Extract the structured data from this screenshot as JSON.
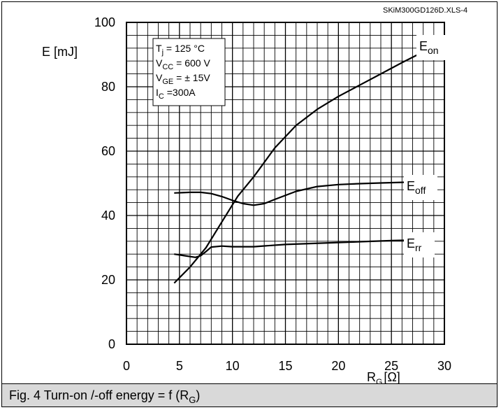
{
  "chart_data": {
    "type": "line",
    "source_label": "SKiM300GD126D.XLS-4",
    "ylabel": "E [mJ]",
    "xlabel_main": "R",
    "xlabel_sub": "G",
    "xlabel_unit": "[Ω]",
    "xlim": [
      0,
      30
    ],
    "ylim": [
      0,
      100
    ],
    "x_ticks": [
      "0",
      "5",
      "10",
      "15",
      "20",
      "25",
      "30"
    ],
    "y_ticks": [
      "0",
      "20",
      "40",
      "60",
      "80",
      "100"
    ],
    "grid": true,
    "conditions": [
      {
        "main": "T",
        "sub": "j",
        "rest": "  = 125 °C"
      },
      {
        "main": "V",
        "sub": "CC",
        "rest": " = 600 V"
      },
      {
        "main": "V",
        "sub": "GE",
        "rest": " = ± 15V"
      },
      {
        "main": "I",
        "sub": "C",
        "rest": " =300A"
      }
    ],
    "series": [
      {
        "name": "E",
        "name_sub": "on",
        "x": [
          4.5,
          6,
          7.5,
          9,
          10.5,
          12,
          14,
          16,
          18,
          20,
          22,
          24,
          26,
          27.5
        ],
        "y": [
          19,
          24,
          30,
          38,
          46,
          52,
          61,
          68,
          73,
          77,
          80.5,
          84,
          87.5,
          90
        ]
      },
      {
        "name": "E",
        "name_sub": "off",
        "x": [
          4.5,
          6,
          7,
          8,
          9,
          10,
          11,
          12,
          13,
          14,
          16,
          18,
          20,
          22,
          24,
          26,
          27.5
        ],
        "y": [
          47,
          47.2,
          47.2,
          46.8,
          45.9,
          44.7,
          43.7,
          43.2,
          43.7,
          45,
          47.5,
          49,
          49.6,
          49.9,
          50.1,
          50.3,
          50.4
        ]
      },
      {
        "name": "E",
        "name_sub": "rr",
        "x": [
          4.5,
          5.5,
          6.5,
          7,
          7.5,
          8,
          9,
          10,
          12,
          15,
          20,
          25,
          27.5
        ],
        "y": [
          28,
          27.5,
          27,
          27.5,
          28.8,
          30.2,
          30.5,
          30.3,
          30.3,
          31,
          31.6,
          32.2,
          32.4
        ]
      }
    ]
  },
  "caption": {
    "text": "Fig. 4 Turn-on /-off energy = f (R",
    "sub": "G",
    "end": ")"
  }
}
